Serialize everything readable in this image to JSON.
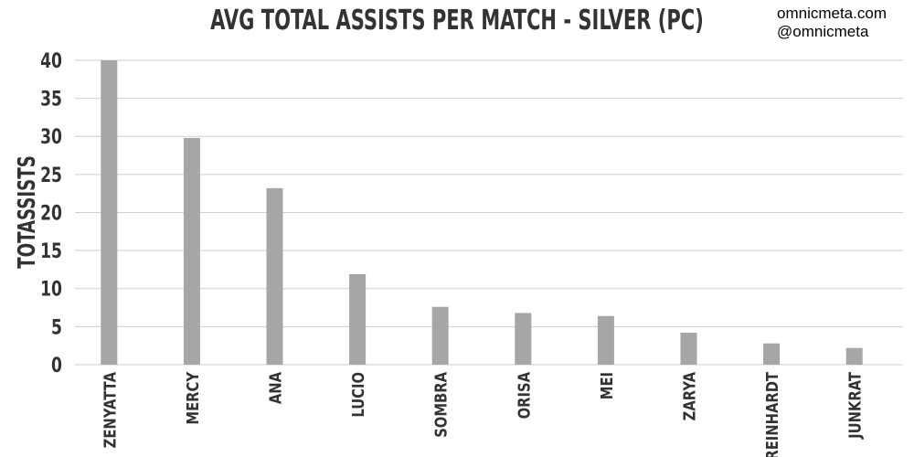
{
  "watermark": {
    "line1": "omnicmeta.com",
    "line2": "@omnicmeta"
  },
  "chart_data": {
    "type": "bar",
    "title": "AVG TOTAL ASSISTS PER MATCH - SILVER (PC)",
    "xlabel": "",
    "ylabel": "TOTASSISTS",
    "ylim": [
      0,
      40
    ],
    "yticks": [
      "0",
      "5",
      "10",
      "15",
      "20",
      "25",
      "30",
      "35",
      "40"
    ],
    "grid": true,
    "categories": [
      "ZENYATTA",
      "MERCY",
      "ANA",
      "LUCIO",
      "SOMBRA",
      "ORISA",
      "MEI",
      "ZARYA",
      "REINHARDT",
      "JUNKRAT"
    ],
    "values": [
      40.0,
      29.8,
      23.2,
      11.9,
      7.6,
      6.8,
      6.4,
      4.2,
      2.8,
      2.2
    ],
    "colors": {
      "bar": "#a6a6a6",
      "grid": "#cfcfcf",
      "text": "#333333"
    }
  }
}
